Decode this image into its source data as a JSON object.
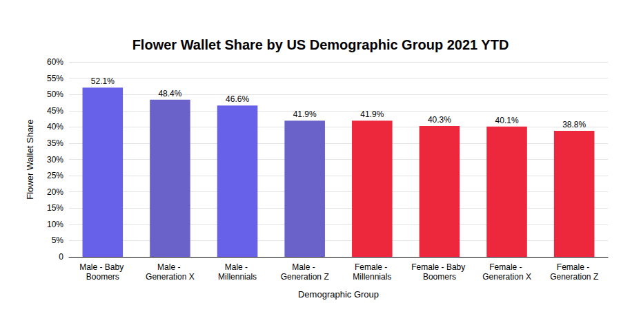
{
  "chart_data": {
    "type": "bar",
    "title": "Flower Wallet Share by US Demographic Group 2021 YTD",
    "x_label": "Demographic Group",
    "y_label": "Flower Wallet Share",
    "categories": [
      "Male - Baby Boomers",
      "Male - Generation X",
      "Male - Millennials",
      "Male - Generation Z",
      "Female - Millennials",
      "Female - Baby Boomers",
      "Female - Generation X",
      "Female - Generation Z"
    ],
    "values": [
      52.1,
      48.4,
      46.6,
      41.9,
      41.9,
      40.3,
      40.1,
      38.8
    ],
    "value_labels": [
      "52.1%",
      "48.4%",
      "46.6%",
      "41.9%",
      "41.9%",
      "40.3%",
      "40.1%",
      "38.8%"
    ],
    "colors": [
      "#6661e8",
      "#6a62c8",
      "#6661e8",
      "#6a62c8",
      "#ee283c",
      "#ee283c",
      "#ee283c",
      "#ee283c"
    ],
    "ylim": [
      0,
      60
    ],
    "yticks": [
      0,
      {
        "value": 5,
        "label": "5%"
      },
      {
        "value": 10,
        "label": "10%"
      },
      {
        "value": 15,
        "label": "15%"
      },
      {
        "value": 20,
        "label": "20%"
      },
      {
        "value": 25,
        "label": "25%"
      },
      {
        "value": 30,
        "label": "30%"
      },
      {
        "value": 35,
        "label": "35%"
      },
      {
        "value": 40,
        "label": "40%"
      },
      {
        "value": 45,
        "label": "45%"
      },
      {
        "value": 50,
        "label": "50%"
      },
      {
        "value": 55,
        "label": "55%"
      },
      {
        "value": 60,
        "label": "60%"
      }
    ],
    "grid": true,
    "data_labels": true
  }
}
